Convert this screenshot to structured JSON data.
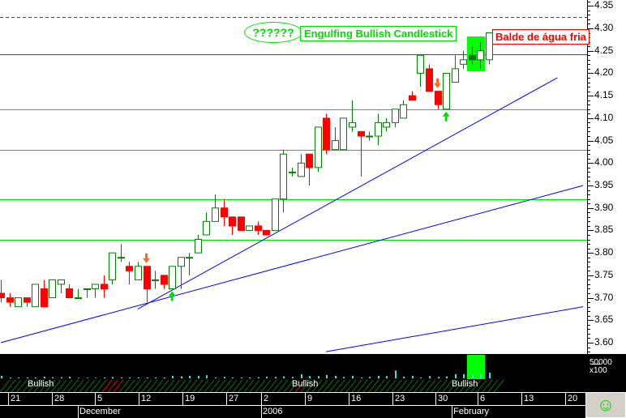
{
  "chart_data": {
    "type": "candlestick",
    "yaxis": {
      "ticks": [
        "4.35",
        "4.30",
        "4.25",
        "4.20",
        "4.15",
        "4.10",
        "4.05",
        "4.00",
        "3.95",
        "3.90",
        "3.85",
        "3.80",
        "3.75",
        "3.70",
        "3.65",
        "3.60"
      ],
      "ylim": [
        3.58,
        4.36
      ]
    },
    "xaxis": {
      "day_ticks": [
        "21",
        "28",
        "5",
        "12",
        "19",
        "27",
        "2",
        "9",
        "16",
        "23",
        "30",
        "6",
        "13",
        "20"
      ],
      "month_ticks": [
        "December",
        "2006",
        "February"
      ]
    },
    "ohlc": [
      [
        3.71,
        3.74,
        3.69,
        3.7
      ],
      [
        3.7,
        3.71,
        3.68,
        3.69
      ],
      [
        3.68,
        3.7,
        3.68,
        3.7
      ],
      [
        3.7,
        3.7,
        3.68,
        3.69
      ],
      [
        3.68,
        3.73,
        3.68,
        3.73
      ],
      [
        3.72,
        3.74,
        3.68,
        3.68
      ],
      [
        3.7,
        3.74,
        3.7,
        3.74
      ],
      [
        3.73,
        3.74,
        3.71,
        3.74
      ],
      [
        3.72,
        3.73,
        3.7,
        3.7
      ],
      [
        3.7,
        3.72,
        3.7,
        3.7
      ],
      [
        3.72,
        3.72,
        3.7,
        3.72
      ],
      [
        3.72,
        3.73,
        3.7,
        3.73
      ],
      [
        3.73,
        3.75,
        3.7,
        3.72
      ],
      [
        3.74,
        3.8,
        3.73,
        3.8
      ],
      [
        3.79,
        3.82,
        3.78,
        3.79
      ],
      [
        3.77,
        3.78,
        3.73,
        3.76
      ],
      [
        3.74,
        3.78,
        3.74,
        3.77
      ],
      [
        3.77,
        3.77,
        3.69,
        3.72
      ],
      [
        3.74,
        3.76,
        3.72,
        3.74
      ],
      [
        3.75,
        3.75,
        3.72,
        3.73
      ],
      [
        3.72,
        3.77,
        3.72,
        3.77
      ],
      [
        3.77,
        3.79,
        3.72,
        3.79
      ],
      [
        3.79,
        3.8,
        3.75,
        3.79
      ],
      [
        3.8,
        3.84,
        3.8,
        3.83
      ],
      [
        3.84,
        3.89,
        3.84,
        3.87
      ],
      [
        3.87,
        3.93,
        3.87,
        3.9
      ],
      [
        3.9,
        3.92,
        3.86,
        3.88
      ],
      [
        3.88,
        3.88,
        3.84,
        3.86
      ],
      [
        3.88,
        3.88,
        3.85,
        3.85
      ],
      [
        3.85,
        3.86,
        3.85,
        3.86
      ],
      [
        3.86,
        3.87,
        3.84,
        3.85
      ],
      [
        3.85,
        3.85,
        3.84,
        3.84
      ],
      [
        3.85,
        3.92,
        3.85,
        3.92
      ],
      [
        3.92,
        4.03,
        3.89,
        4.02
      ],
      [
        3.98,
        3.99,
        3.97,
        3.98
      ],
      [
        3.97,
        4.02,
        3.97,
        4.0
      ],
      [
        4.02,
        4.02,
        3.95,
        3.99
      ],
      [
        3.99,
        4.08,
        3.98,
        4.08
      ],
      [
        4.1,
        4.11,
        4.02,
        4.03
      ],
      [
        4.03,
        4.08,
        4.03,
        4.05
      ],
      [
        4.03,
        4.1,
        4.03,
        4.1
      ],
      [
        4.08,
        4.14,
        4.07,
        4.09
      ],
      [
        4.07,
        4.07,
        3.97,
        4.06
      ],
      [
        4.06,
        4.07,
        4.05,
        4.06
      ],
      [
        4.06,
        4.11,
        4.04,
        4.09
      ],
      [
        4.08,
        4.1,
        4.07,
        4.09
      ],
      [
        4.09,
        4.12,
        4.08,
        4.12
      ],
      [
        4.1,
        4.14,
        4.1,
        4.13
      ],
      [
        4.15,
        4.16,
        4.14,
        4.14
      ],
      [
        4.2,
        4.24,
        4.17,
        4.24
      ],
      [
        4.21,
        4.22,
        4.16,
        4.16
      ],
      [
        4.16,
        4.16,
        4.12,
        4.13
      ],
      [
        4.12,
        4.2,
        4.12,
        4.2
      ],
      [
        4.18,
        4.24,
        4.18,
        4.21
      ],
      [
        4.22,
        4.25,
        4.21,
        4.23
      ],
      [
        4.24,
        4.26,
        4.22,
        4.23
      ],
      [
        4.23,
        4.27,
        4.21,
        4.25
      ],
      [
        4.23,
        4.29,
        4.22,
        4.29
      ]
    ],
    "volume_x100": [
      9000,
      3000,
      3000,
      3000,
      3000,
      6000,
      4000,
      4000,
      6000,
      2000,
      2000,
      2000,
      3000,
      5000,
      3000,
      3000,
      3000,
      3000,
      3000,
      3000,
      9000,
      7000,
      9000,
      9000,
      11000,
      3000,
      5000,
      3000,
      3000,
      3000,
      4000,
      6000,
      5000,
      7000,
      5000,
      15000,
      8000,
      8000,
      12000,
      9000,
      5000,
      9000,
      3000,
      5000,
      9000,
      8000,
      28000,
      6000,
      9000,
      3000,
      8000,
      5000,
      7000,
      15000,
      15000,
      15000,
      15000,
      20000
    ],
    "volume_axis": {
      "tick": "50000",
      "unit": "x100"
    },
    "horizontal_lines": [
      {
        "price": 4.325,
        "color": "#ff0000",
        "style": "dashed"
      },
      {
        "price": 4.243,
        "color": "#ff0000",
        "style": "solid"
      },
      {
        "price": 4.12,
        "color": "#00e000",
        "style": "solid"
      },
      {
        "price": 4.03,
        "color": "#00e000",
        "style": "solid"
      },
      {
        "price": 3.92,
        "color": "#00e000",
        "style": "solid"
      },
      {
        "price": 3.83,
        "color": "#00e000",
        "style": "solid"
      }
    ],
    "trendlines": [
      {
        "start_bar": 16,
        "start_price": 3.675,
        "end_bar": 65,
        "end_price": 4.19
      },
      {
        "start_bar": 0,
        "start_price": 3.6,
        "end_bar": 68,
        "end_price": 3.95
      },
      {
        "start_bar": 38,
        "start_price": 3.58,
        "end_bar": 68,
        "end_price": 3.68
      }
    ],
    "signals": [
      {
        "bar": 17,
        "type": "sell-arrow",
        "color": "#ff6a20"
      },
      {
        "bar": 20,
        "type": "buy-arrow",
        "color": "#00e000"
      },
      {
        "bar": 51,
        "type": "sell-arrow",
        "color": "#ff6a20"
      },
      {
        "bar": 52,
        "type": "buy-arrow",
        "color": "#00e000"
      }
    ],
    "highlight_bars": [
      55,
      56
    ],
    "pattern_band": [
      {
        "label": "Bullish"
      },
      {
        "label": "Bullish"
      },
      {
        "label": "Bullish"
      }
    ],
    "colors": {
      "up": "#008000",
      "down": "#ff0000",
      "highlight": "#00ff00",
      "trend": "#0000ff",
      "volume": "#40e0d0"
    }
  },
  "annotations": {
    "question": "??????",
    "engulfing": "Engulfing Bullish Candlestick",
    "balde": "Balde de água fria"
  },
  "toolbar": {
    "smiley": "☺"
  }
}
